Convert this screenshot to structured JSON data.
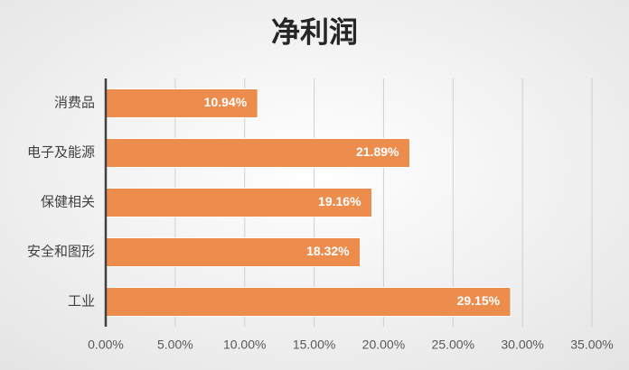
{
  "chart_data": {
    "type": "bar",
    "orientation": "horizontal",
    "title": "净利润",
    "categories": [
      "消费品",
      "电子及能源",
      "保健相关",
      "安全和图形",
      "工业"
    ],
    "values": [
      10.94,
      21.89,
      19.16,
      18.32,
      29.15
    ],
    "value_labels": [
      "10.94%",
      "21.89%",
      "19.16%",
      "18.32%",
      "29.15%"
    ],
    "color": "#ed8d4d",
    "xlim": [
      0,
      35
    ],
    "xticks": [
      {
        "value": 0,
        "label": "0.00%"
      },
      {
        "value": 5,
        "label": "5.00%"
      },
      {
        "value": 10,
        "label": "10.00%"
      },
      {
        "value": 15,
        "label": "15.00%"
      },
      {
        "value": 20,
        "label": "20.00%"
      },
      {
        "value": 25,
        "label": "25.00%"
      },
      {
        "value": 30,
        "label": "30.00%"
      },
      {
        "value": 35,
        "label": "35.00%"
      }
    ],
    "grid": true
  }
}
